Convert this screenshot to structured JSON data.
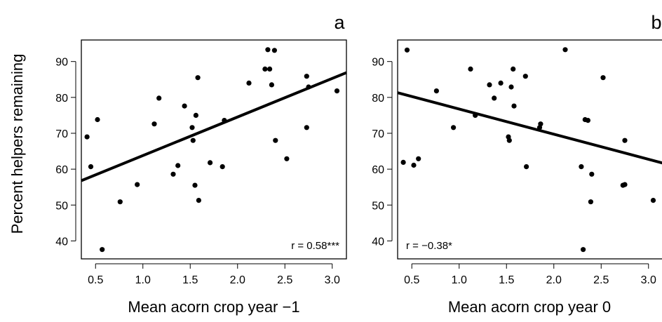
{
  "figure": {
    "ylabel": "Percent helpers remaining"
  },
  "chart_data": [
    {
      "type": "scatter",
      "panel_label": "a",
      "xlabel": "Mean acorn crop year −1",
      "ylabel": "Percent helpers remaining",
      "annotation": "r = 0.58***",
      "xlim": [
        0.35,
        3.15
      ],
      "ylim": [
        35,
        96
      ],
      "xticks": [
        0.5,
        1.0,
        1.5,
        2.0,
        2.5,
        3.0
      ],
      "xtick_labels": [
        "0.5",
        "1.0",
        "1.5",
        "2.0",
        "2.5",
        "3.0"
      ],
      "yticks": [
        40,
        50,
        60,
        70,
        80,
        90
      ],
      "ytick_labels": [
        "40",
        "50",
        "60",
        "70",
        "80",
        "90"
      ],
      "grid": false,
      "fit_line": {
        "x": [
          0.35,
          3.15
        ],
        "y": [
          56.8,
          86.9
        ]
      },
      "points": [
        {
          "x": 0.41,
          "y": 69.0
        },
        {
          "x": 0.45,
          "y": 60.7
        },
        {
          "x": 0.52,
          "y": 73.8
        },
        {
          "x": 0.57,
          "y": 37.6
        },
        {
          "x": 0.76,
          "y": 50.9
        },
        {
          "x": 0.94,
          "y": 55.7
        },
        {
          "x": 1.12,
          "y": 72.6
        },
        {
          "x": 1.17,
          "y": 79.8
        },
        {
          "x": 1.32,
          "y": 58.6
        },
        {
          "x": 1.37,
          "y": 61.0
        },
        {
          "x": 1.44,
          "y": 77.6
        },
        {
          "x": 1.52,
          "y": 71.6
        },
        {
          "x": 1.53,
          "y": 68.0
        },
        {
          "x": 1.55,
          "y": 55.5
        },
        {
          "x": 1.56,
          "y": 75.0
        },
        {
          "x": 1.58,
          "y": 85.5
        },
        {
          "x": 1.59,
          "y": 51.3
        },
        {
          "x": 1.71,
          "y": 61.8
        },
        {
          "x": 1.84,
          "y": 60.7
        },
        {
          "x": 1.86,
          "y": 73.6
        },
        {
          "x": 2.12,
          "y": 84.0
        },
        {
          "x": 2.29,
          "y": 87.9
        },
        {
          "x": 2.32,
          "y": 93.3
        },
        {
          "x": 2.34,
          "y": 87.9
        },
        {
          "x": 2.36,
          "y": 83.5
        },
        {
          "x": 2.39,
          "y": 93.1
        },
        {
          "x": 2.4,
          "y": 68.0
        },
        {
          "x": 2.52,
          "y": 62.9
        },
        {
          "x": 2.73,
          "y": 85.9
        },
        {
          "x": 2.73,
          "y": 71.6
        },
        {
          "x": 2.75,
          "y": 82.9
        },
        {
          "x": 3.05,
          "y": 81.8
        }
      ]
    },
    {
      "type": "scatter",
      "panel_label": "b",
      "xlabel": "Mean acorn crop year 0",
      "annotation": "r = −0.38*",
      "xlim": [
        0.35,
        3.15
      ],
      "ylim": [
        35,
        96
      ],
      "xticks": [
        0.5,
        1.0,
        1.5,
        2.0,
        2.5,
        3.0
      ],
      "xtick_labels": [
        "0.5",
        "1.0",
        "1.5",
        "2.0",
        "2.5",
        "3.0"
      ],
      "yticks": [
        40,
        50,
        60,
        70,
        80,
        90
      ],
      "ytick_labels": [
        "40",
        "50",
        "60",
        "70",
        "80",
        "90"
      ],
      "grid": false,
      "fit_line": {
        "x": [
          0.35,
          3.15
        ],
        "y": [
          81.3,
          61.7
        ]
      },
      "points": [
        {
          "x": 0.41,
          "y": 61.9
        },
        {
          "x": 0.45,
          "y": 93.2
        },
        {
          "x": 0.52,
          "y": 61.1
        },
        {
          "x": 0.57,
          "y": 62.9
        },
        {
          "x": 0.76,
          "y": 81.8
        },
        {
          "x": 0.94,
          "y": 71.6
        },
        {
          "x": 1.12,
          "y": 87.9
        },
        {
          "x": 1.17,
          "y": 75.0
        },
        {
          "x": 1.32,
          "y": 83.5
        },
        {
          "x": 1.37,
          "y": 79.8
        },
        {
          "x": 1.44,
          "y": 84.0
        },
        {
          "x": 1.52,
          "y": 69.0
        },
        {
          "x": 1.53,
          "y": 68.0
        },
        {
          "x": 1.55,
          "y": 82.9
        },
        {
          "x": 1.57,
          "y": 87.9
        },
        {
          "x": 1.58,
          "y": 77.6
        },
        {
          "x": 1.7,
          "y": 85.9
        },
        {
          "x": 1.71,
          "y": 60.7
        },
        {
          "x": 1.85,
          "y": 71.6
        },
        {
          "x": 1.86,
          "y": 72.6
        },
        {
          "x": 2.12,
          "y": 93.3
        },
        {
          "x": 2.29,
          "y": 60.7
        },
        {
          "x": 2.31,
          "y": 37.6
        },
        {
          "x": 2.33,
          "y": 73.8
        },
        {
          "x": 2.36,
          "y": 73.6
        },
        {
          "x": 2.39,
          "y": 50.9
        },
        {
          "x": 2.4,
          "y": 58.6
        },
        {
          "x": 2.52,
          "y": 85.5
        },
        {
          "x": 2.73,
          "y": 55.5
        },
        {
          "x": 2.75,
          "y": 55.7
        },
        {
          "x": 2.75,
          "y": 68.0
        },
        {
          "x": 3.05,
          "y": 51.3
        }
      ]
    }
  ]
}
